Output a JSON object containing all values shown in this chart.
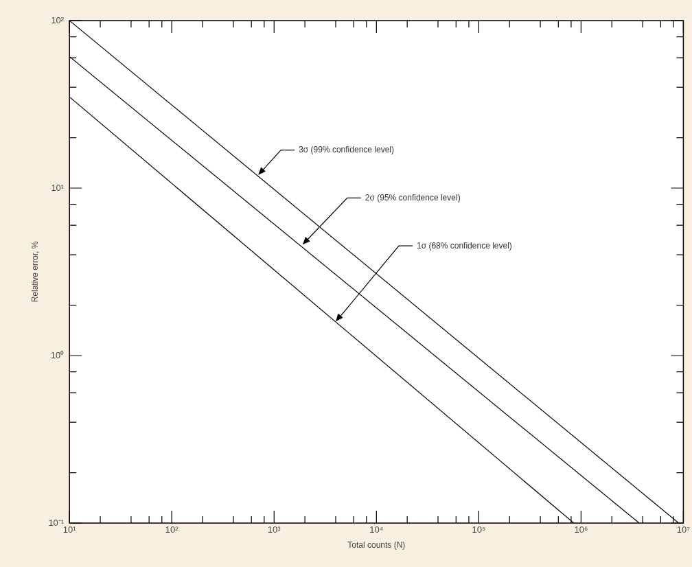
{
  "chart_data": {
    "type": "line",
    "xlabel": "Total counts (N)",
    "ylabel": "Relative error, %",
    "log": "xy",
    "legend": false,
    "grid": false,
    "marker": "none",
    "line_style": "solid",
    "xlim": [
      10,
      10000000
    ],
    "ylim": [
      0.1,
      100
    ],
    "xticks": [
      {
        "value": 10,
        "label": "10¹"
      },
      {
        "value": 20,
        "label": null
      },
      {
        "value": 40,
        "label": null
      },
      {
        "value": 60,
        "label": null
      },
      {
        "value": 80,
        "label": null
      },
      {
        "value": 100,
        "label": "10²"
      },
      {
        "value": 200,
        "label": null
      },
      {
        "value": 400,
        "label": null
      },
      {
        "value": 600,
        "label": null
      },
      {
        "value": 800,
        "label": null
      },
      {
        "value": 1000,
        "label": "10³"
      },
      {
        "value": 2000,
        "label": null
      },
      {
        "value": 4000,
        "label": null
      },
      {
        "value": 6000,
        "label": null
      },
      {
        "value": 8000,
        "label": null
      },
      {
        "value": 10000,
        "label": "10⁴"
      },
      {
        "value": 20000,
        "label": null
      },
      {
        "value": 40000,
        "label": null
      },
      {
        "value": 60000,
        "label": null
      },
      {
        "value": 80000,
        "label": null
      },
      {
        "value": 100000,
        "label": "10⁵"
      },
      {
        "value": 200000,
        "label": null
      },
      {
        "value": 400000,
        "label": null
      },
      {
        "value": 600000,
        "label": null
      },
      {
        "value": 800000,
        "label": null
      },
      {
        "value": 1000000,
        "label": "10⁶"
      },
      {
        "value": 2000000,
        "label": null
      },
      {
        "value": 4000000,
        "label": null
      },
      {
        "value": 6000000,
        "label": null
      },
      {
        "value": 8000000,
        "label": null
      },
      {
        "value": 10000000,
        "label": "10⁷"
      }
    ],
    "yticks": [
      {
        "value": 0.1,
        "label": "10⁻¹"
      },
      {
        "value": 0.2,
        "label": null
      },
      {
        "value": 0.4,
        "label": null
      },
      {
        "value": 0.6,
        "label": null
      },
      {
        "value": 0.8,
        "label": null
      },
      {
        "value": 1,
        "label": "10⁰"
      },
      {
        "value": 2,
        "label": null
      },
      {
        "value": 4,
        "label": null
      },
      {
        "value": 6,
        "label": null
      },
      {
        "value": 8,
        "label": null
      },
      {
        "value": 10,
        "label": "10¹"
      },
      {
        "value": 20,
        "label": null
      },
      {
        "value": 40,
        "label": null
      },
      {
        "value": 60,
        "label": null
      },
      {
        "value": 80,
        "label": null
      },
      {
        "value": 100,
        "label": "10²"
      }
    ],
    "series": [
      {
        "color": "#000000",
        "x": [
          10,
          9000000
        ],
        "values": [
          100,
          0.1
        ]
      },
      {
        "color": "#000000",
        "x": [
          10,
          3700000
        ],
        "values": [
          61,
          0.1
        ]
      },
      {
        "color": "#000000",
        "x": [
          10,
          850000
        ],
        "values": [
          35,
          0.1
        ]
      }
    ],
    "annotations": [
      {
        "text": "3σ (99% confidence level)",
        "x": 700,
        "y": 12
      },
      {
        "text": "2σ (95% confidence level)",
        "x": 1900,
        "y": 4.6
      },
      {
        "text": "1σ (68% confidence level)",
        "x": 4000,
        "y": 1.6
      }
    ]
  }
}
